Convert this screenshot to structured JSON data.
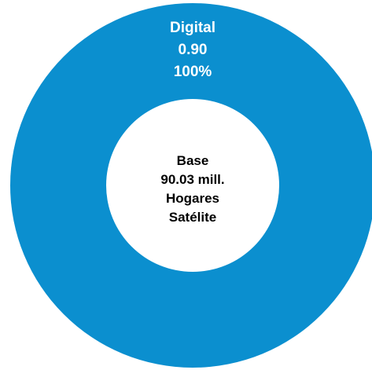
{
  "chart_data": {
    "type": "pie",
    "variant": "donut",
    "slices": [
      {
        "name": "Digital",
        "value": 0.9,
        "value_label": "0.90",
        "percent_label": "100%",
        "color": "#0b8fcf"
      }
    ],
    "center_text": [
      "Base",
      "90.03 mill.",
      "Hogares",
      "Satélite"
    ],
    "legend": "none"
  }
}
